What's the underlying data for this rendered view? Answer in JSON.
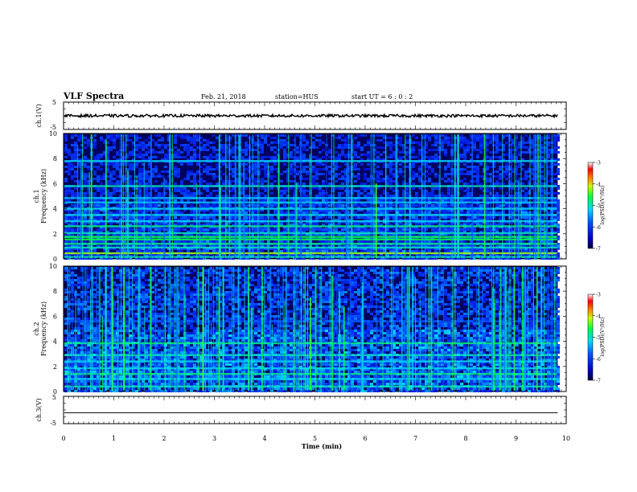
{
  "header": {
    "title": "VLF Spectra",
    "date": "Feb. 21, 2018",
    "station": "station=HUS",
    "start": "start UT =  6 : 0  : 2"
  },
  "chart_data": [
    {
      "id": "ch1_waveform",
      "type": "line",
      "ylabel": "ch.1(V)",
      "ylim": [
        -5,
        5
      ],
      "yticks": [
        "5",
        "-5"
      ],
      "x_range_min": [
        0,
        9.83
      ],
      "trace_level_v": 0,
      "trace_amplitude_v": 0.5
    },
    {
      "id": "ch1_spectrogram",
      "type": "heatmap",
      "ylabel_line1": "ch.1",
      "ylabel_line2": "Frequency  (kHz)",
      "ylim_khz": [
        0,
        10
      ],
      "yticks": [
        "0",
        "2",
        "4",
        "6",
        "8",
        "10"
      ],
      "x_range_min": [
        0,
        9.83
      ],
      "bands_khz": [
        {
          "f": 0.15,
          "level": 0.5
        },
        {
          "f": 0.45,
          "level": 0.7
        },
        {
          "f": 0.9,
          "level": 0.5
        },
        {
          "f": 1.2,
          "level": 0.55
        },
        {
          "f": 1.55,
          "level": 0.6
        },
        {
          "f": 1.75,
          "level": 0.6
        },
        {
          "f": 2.05,
          "level": 0.5
        },
        {
          "f": 2.6,
          "level": 0.55
        },
        {
          "f": 3.0,
          "level": 0.45
        },
        {
          "f": 3.5,
          "level": 0.45
        },
        {
          "f": 4.0,
          "level": 0.45
        },
        {
          "f": 4.5,
          "level": 0.42
        },
        {
          "f": 4.85,
          "level": 0.42
        },
        {
          "f": 5.8,
          "level": 0.5
        },
        {
          "f": 7.8,
          "level": 0.45
        }
      ],
      "colorbar": {
        "label": "log(PSD)(V²/Hz)",
        "range": [
          -7,
          -3
        ],
        "ticks": [
          "-3",
          "-4",
          "-5",
          "-6",
          "-7"
        ]
      }
    },
    {
      "id": "ch2_spectrogram",
      "type": "heatmap",
      "ylabel_line1": "ch.2",
      "ylabel_line2": "Frequency  (kHz)",
      "ylim_khz": [
        0,
        10
      ],
      "yticks": [
        "0",
        "2",
        "4",
        "6",
        "8",
        "10"
      ],
      "x_range_min": [
        0,
        9.83
      ],
      "bands_khz": [
        {
          "f": 0.4,
          "level": 0.5
        },
        {
          "f": 1.0,
          "level": 0.45
        },
        {
          "f": 1.4,
          "level": 0.55
        },
        {
          "f": 1.85,
          "level": 0.45
        },
        {
          "f": 2.4,
          "level": 0.45
        },
        {
          "f": 2.9,
          "level": 0.5
        },
        {
          "f": 3.85,
          "level": 0.55
        },
        {
          "f": 5.6,
          "level": 0.3
        }
      ],
      "colorbar": {
        "label": "log(PSD)(V²/Hz)",
        "range": [
          -7,
          -3
        ],
        "ticks": [
          "-3",
          "-4",
          "-5",
          "-6",
          "-7"
        ]
      }
    },
    {
      "id": "ch3_waveform",
      "type": "line",
      "ylabel": "ch.3(V)",
      "ylim": [
        -5,
        5
      ],
      "yticks": [
        "5",
        "-5"
      ],
      "x_range_min": [
        0,
        9.83
      ],
      "trace_level_v": -1
    }
  ],
  "x_axis": {
    "label": "Time  (min)",
    "range": [
      0,
      10
    ],
    "ticks": [
      "0",
      "1",
      "2",
      "3",
      "4",
      "5",
      "6",
      "7",
      "8",
      "9",
      "10"
    ]
  },
  "colors": {
    "background": "#ffffff",
    "axes": "#000000",
    "spectrogram_base": "#00003a"
  }
}
